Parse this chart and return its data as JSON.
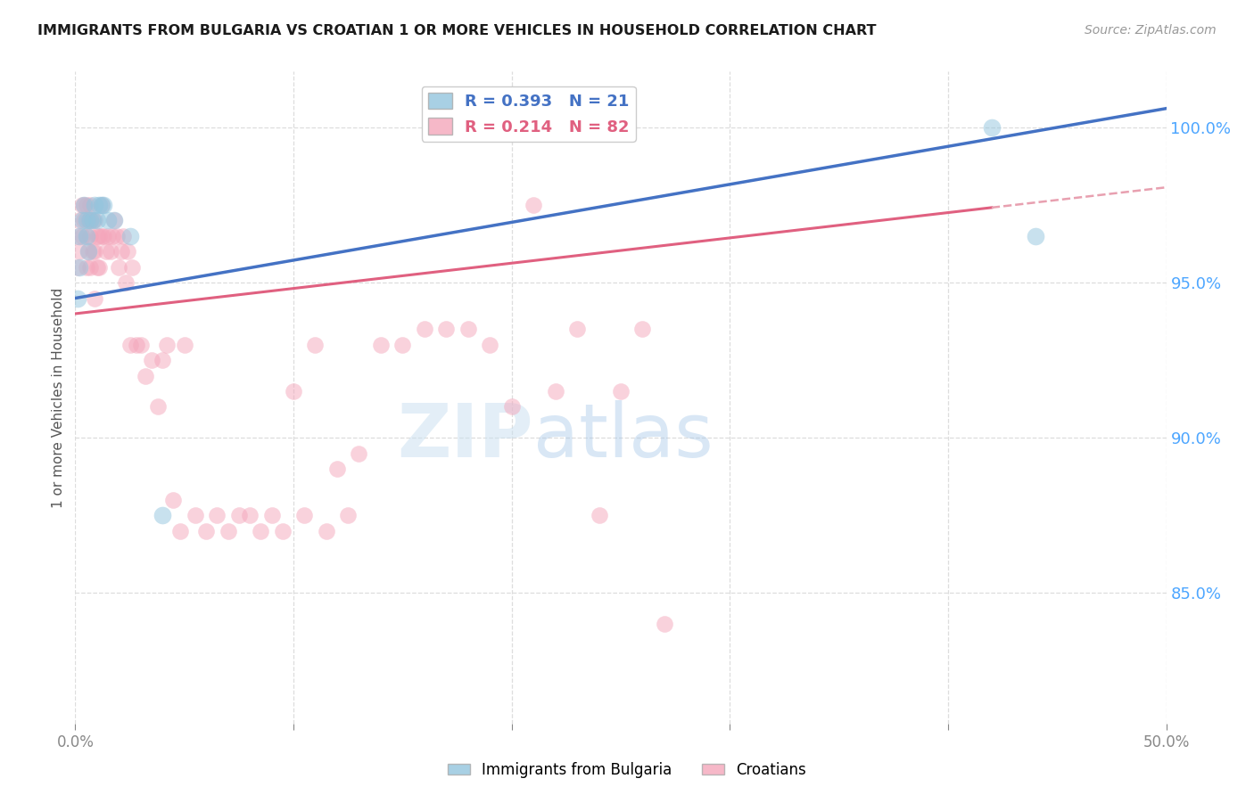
{
  "title": "IMMIGRANTS FROM BULGARIA VS CROATIAN 1 OR MORE VEHICLES IN HOUSEHOLD CORRELATION CHART",
  "source": "Source: ZipAtlas.com",
  "ylabel": "1 or more Vehicles in Household",
  "legend_label_1": "Immigrants from Bulgaria",
  "legend_label_2": "Croatians",
  "r1": 0.393,
  "n1": 21,
  "r2": 0.214,
  "n2": 82,
  "color1": "#92c5de",
  "color2": "#f4a6bb",
  "trendline1_color": "#4472c4",
  "trendline2_color": "#e06080",
  "trendline2_dash_color": "#e8a0b0",
  "xmin": 0.0,
  "xmax": 0.5,
  "ymin": 0.808,
  "ymax": 1.018,
  "yticks": [
    0.85,
    0.9,
    0.95,
    1.0
  ],
  "ytick_labels": [
    "85.0%",
    "90.0%",
    "95.0%",
    "100.0%"
  ],
  "xticks": [
    0.0,
    0.1,
    0.2,
    0.3,
    0.4,
    0.5
  ],
  "xtick_labels": [
    "0.0%",
    "",
    "",
    "",
    "",
    "50.0%"
  ],
  "watermark_zip": "ZIP",
  "watermark_atlas": "atlas",
  "bg_color": "#ffffff",
  "grid_color": "#dddddd",
  "axis_color": "#4da6ff",
  "bulgaria_x": [
    0.001,
    0.002,
    0.002,
    0.003,
    0.004,
    0.005,
    0.005,
    0.006,
    0.007,
    0.008,
    0.009,
    0.01,
    0.011,
    0.012,
    0.013,
    0.015,
    0.018,
    0.025,
    0.04,
    0.42,
    0.44
  ],
  "bulgaria_y": [
    0.945,
    0.955,
    0.965,
    0.97,
    0.975,
    0.965,
    0.97,
    0.96,
    0.97,
    0.97,
    0.975,
    0.97,
    0.975,
    0.975,
    0.975,
    0.97,
    0.97,
    0.965,
    0.875,
    1.0,
    0.965
  ],
  "croatian_x": [
    0.001,
    0.001,
    0.002,
    0.002,
    0.003,
    0.003,
    0.004,
    0.004,
    0.005,
    0.005,
    0.005,
    0.006,
    0.006,
    0.007,
    0.007,
    0.007,
    0.007,
    0.008,
    0.008,
    0.009,
    0.009,
    0.009,
    0.01,
    0.01,
    0.011,
    0.011,
    0.012,
    0.012,
    0.013,
    0.014,
    0.015,
    0.016,
    0.017,
    0.018,
    0.019,
    0.02,
    0.021,
    0.022,
    0.023,
    0.024,
    0.025,
    0.026,
    0.028,
    0.03,
    0.032,
    0.035,
    0.038,
    0.04,
    0.042,
    0.045,
    0.048,
    0.05,
    0.055,
    0.06,
    0.065,
    0.07,
    0.075,
    0.08,
    0.085,
    0.09,
    0.095,
    0.1,
    0.105,
    0.11,
    0.115,
    0.12,
    0.125,
    0.13,
    0.14,
    0.15,
    0.16,
    0.17,
    0.18,
    0.19,
    0.2,
    0.21,
    0.22,
    0.23,
    0.24,
    0.25,
    0.26,
    0.27
  ],
  "croatian_y": [
    0.955,
    0.965,
    0.96,
    0.97,
    0.965,
    0.975,
    0.97,
    0.975,
    0.955,
    0.965,
    0.975,
    0.96,
    0.97,
    0.955,
    0.965,
    0.97,
    0.975,
    0.96,
    0.97,
    0.945,
    0.96,
    0.97,
    0.955,
    0.965,
    0.955,
    0.965,
    0.965,
    0.975,
    0.965,
    0.96,
    0.965,
    0.96,
    0.965,
    0.97,
    0.965,
    0.955,
    0.96,
    0.965,
    0.95,
    0.96,
    0.93,
    0.955,
    0.93,
    0.93,
    0.92,
    0.925,
    0.91,
    0.925,
    0.93,
    0.88,
    0.87,
    0.93,
    0.875,
    0.87,
    0.875,
    0.87,
    0.875,
    0.875,
    0.87,
    0.875,
    0.87,
    0.915,
    0.875,
    0.93,
    0.87,
    0.89,
    0.875,
    0.895,
    0.93,
    0.93,
    0.935,
    0.935,
    0.935,
    0.93,
    0.91,
    0.975,
    0.915,
    0.935,
    0.875,
    0.915,
    0.935,
    0.84
  ]
}
